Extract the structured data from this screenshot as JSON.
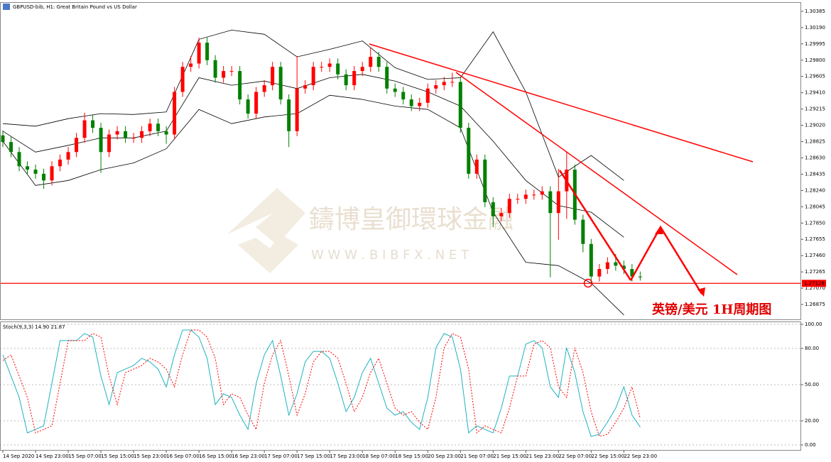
{
  "chart_data": [
    {
      "type": "candlestick",
      "title": "GBPUSD-bib, H1:  Great Britain Pound vs US Dollar",
      "annotations": [
        "英镑/美元 1H周期图"
      ],
      "watermark": [
        "鑄博皇御環球金融",
        "W W W . B I B F X . N E T"
      ],
      "up_color": "#ff0000",
      "down_color": "#008000",
      "price_line": 1.27128,
      "price_line_color": "#ff0000",
      "xlim": [
        -0.35,
        97.7
      ],
      "xticks": [
        {
          "value": 0,
          "label": "14 Sep 2020"
        },
        {
          "value": 4,
          "label": "14 Sep 23:00"
        },
        {
          "value": 8,
          "label": "15 Sep 07:00"
        },
        {
          "value": 12,
          "label": "15 Sep 15:00"
        },
        {
          "value": 16,
          "label": "15 Sep 23:00"
        },
        {
          "value": 20,
          "label": "16 Sep 07:00"
        },
        {
          "value": 24,
          "label": "16 Sep 15:00"
        },
        {
          "value": 28,
          "label": "16 Sep 23:00"
        },
        {
          "value": 32,
          "label": "17 Sep 07:00"
        },
        {
          "value": 36,
          "label": "17 Sep 15:00"
        },
        {
          "value": 40,
          "label": "17 Sep 23:00"
        },
        {
          "value": 44,
          "label": "18 Sep 07:00"
        },
        {
          "value": 48,
          "label": "18 Sep 15:00"
        },
        {
          "value": 52,
          "label": "20 Sep 23:00"
        },
        {
          "value": 56,
          "label": "21 Sep 07:00"
        },
        {
          "value": 60,
          "label": "21 Sep 15:00"
        },
        {
          "value": 64,
          "label": "21 Sep 23:00"
        },
        {
          "value": 68,
          "label": "22 Sep 07:00"
        },
        {
          "value": 72,
          "label": "22 Sep 15:00"
        },
        {
          "value": 76,
          "label": "22 Sep 23:00"
        }
      ],
      "ylim": [
        1.26697,
        1.30478
      ],
      "yticks": [
        1.30385,
        {
          "value": 1.3019,
          "label": "1.30190"
        },
        1.29995,
        {
          "value": 1.298,
          "label": "1.29800"
        },
        1.29605,
        {
          "value": 1.2941,
          "label": "1.29410"
        },
        1.29215,
        {
          "value": 1.2902,
          "label": "1.29020"
        },
        1.28825,
        {
          "value": 1.2863,
          "label": "1.28630"
        },
        1.28435,
        {
          "value": 1.2824,
          "label": "1.28240"
        },
        1.28045,
        {
          "value": 1.2785,
          "label": "1.27850"
        },
        1.27655,
        {
          "value": 1.2746,
          "label": "1.27460"
        },
        1.27265,
        {
          "value": 1.2707,
          "label": "1.27070"
        },
        1.26875
      ],
      "open": [
        1.289,
        1.2882,
        1.287,
        1.2853,
        1.2849,
        1.2844,
        1.2836,
        1.2853,
        1.2861,
        1.287,
        1.2887,
        1.2908,
        1.2899,
        1.287,
        1.2891,
        1.2895,
        1.2887,
        1.2887,
        1.2895,
        1.2904,
        1.2895,
        1.2891,
        1.2942,
        1.2972,
        1.2976,
        1.3001,
        1.298,
        1.2959,
        1.2967,
        1.2967,
        1.2933,
        1.2916,
        1.2942,
        1.295,
        1.2972,
        1.2933,
        1.2895,
        1.2946,
        1.295,
        1.2972,
        1.2972,
        1.2976,
        1.2963,
        1.295,
        1.2967,
        1.2972,
        1.2984,
        1.2972,
        1.2946,
        1.2942,
        1.2933,
        1.2925,
        1.2929,
        1.2946,
        1.295,
        1.2954,
        1.2954,
        1.2899,
        1.2844,
        1.2861,
        1.281,
        1.2793,
        1.2797,
        1.2814,
        1.2814,
        1.2819,
        1.2819,
        1.2823,
        1.2797,
        1.2823,
        1.2849,
        1.2789,
        1.276,
        1.2721,
        1.273,
        1.2738,
        1.2734,
        1.273,
        1.2721
      ],
      "high": [
        1.2896,
        1.2888,
        1.2876,
        1.2859,
        1.2855,
        1.285,
        1.2859,
        1.2867,
        1.2876,
        1.2893,
        1.2917,
        1.2914,
        1.2905,
        1.2897,
        1.2901,
        1.2901,
        1.2893,
        1.2901,
        1.291,
        1.291,
        1.2901,
        1.2948,
        1.2978,
        1.2985,
        1.3007,
        1.3007,
        1.2986,
        1.2973,
        1.2973,
        1.2973,
        1.2939,
        1.2948,
        1.2956,
        1.2978,
        1.2978,
        1.2939,
        1.2985,
        1.2956,
        1.2978,
        1.2978,
        1.2982,
        1.2982,
        1.2969,
        1.2973,
        1.2978,
        1.2995,
        1.299,
        1.2978,
        1.2952,
        1.2948,
        1.2939,
        1.2935,
        1.2952,
        1.2956,
        1.296,
        1.2965,
        1.296,
        1.2905,
        1.2867,
        1.2867,
        1.2816,
        1.2803,
        1.282,
        1.282,
        1.2825,
        1.2825,
        1.2829,
        1.2829,
        1.285,
        1.287,
        1.2855,
        1.2795,
        1.2766,
        1.2736,
        1.2744,
        1.2748,
        1.274,
        1.2736,
        1.2727
      ],
      "low": [
        1.2876,
        1.2864,
        1.2847,
        1.2843,
        1.2838,
        1.2826,
        1.283,
        1.2847,
        1.2855,
        1.2864,
        1.2881,
        1.2893,
        1.2845,
        1.2864,
        1.2885,
        1.2881,
        1.2881,
        1.2881,
        1.2889,
        1.2889,
        1.288,
        1.2885,
        1.2936,
        1.2966,
        1.297,
        1.2974,
        1.2953,
        1.2953,
        1.2961,
        1.2927,
        1.291,
        1.291,
        1.2936,
        1.2944,
        1.2927,
        1.2876,
        1.2889,
        1.294,
        1.2944,
        1.2966,
        1.2966,
        1.2957,
        1.2944,
        1.2944,
        1.2961,
        1.2966,
        1.2966,
        1.294,
        1.2936,
        1.2927,
        1.2919,
        1.2919,
        1.2923,
        1.294,
        1.2944,
        1.2948,
        1.2893,
        1.2838,
        1.2838,
        1.2804,
        1.278,
        1.2787,
        1.2791,
        1.2808,
        1.2808,
        1.2813,
        1.2813,
        1.272,
        1.2765,
        1.279,
        1.2783,
        1.275,
        1.2712,
        1.2715,
        1.2724,
        1.2728,
        1.2724,
        1.2715,
        1.2716
      ],
      "close": [
        1.2882,
        1.287,
        1.2853,
        1.2849,
        1.2844,
        1.2836,
        1.2853,
        1.2861,
        1.287,
        1.2887,
        1.2908,
        1.2899,
        1.287,
        1.2891,
        1.2895,
        1.2887,
        1.2887,
        1.2895,
        1.2904,
        1.2895,
        1.2891,
        1.2942,
        1.2972,
        1.2976,
        1.3001,
        1.298,
        1.2959,
        1.2967,
        1.2967,
        1.2933,
        1.2916,
        1.2942,
        1.295,
        1.2972,
        1.2933,
        1.2895,
        1.2946,
        1.295,
        1.2972,
        1.2972,
        1.2976,
        1.2963,
        1.295,
        1.2967,
        1.2972,
        1.2984,
        1.2972,
        1.2946,
        1.2942,
        1.2933,
        1.2925,
        1.2929,
        1.2946,
        1.295,
        1.2954,
        1.2954,
        1.2899,
        1.2844,
        1.2861,
        1.281,
        1.2793,
        1.2797,
        1.2814,
        1.2814,
        1.2819,
        1.2819,
        1.2823,
        1.2797,
        1.2823,
        1.2849,
        1.2789,
        1.276,
        1.2721,
        1.273,
        1.2738,
        1.2734,
        1.273,
        1.2721,
        1.272
      ],
      "bands": {
        "color": "#000000",
        "x": [
          0,
          4,
          8,
          12,
          16,
          20,
          24,
          28,
          32,
          36,
          40,
          44,
          48,
          52,
          56,
          60,
          64,
          68,
          72,
          76
        ],
        "upper": [
          1.2904,
          1.2901,
          1.291,
          1.2916,
          1.2915,
          1.2918,
          1.3005,
          1.3016,
          1.3011,
          1.2984,
          1.2993,
          1.3003,
          1.2971,
          1.2957,
          1.2959,
          1.3014,
          1.2942,
          1.284,
          1.2866,
          1.2836
        ],
        "middle": [
          1.2895,
          1.287,
          1.2878,
          1.2887,
          1.2887,
          1.2895,
          1.2959,
          1.295,
          1.2955,
          1.2946,
          1.2959,
          1.2963,
          1.2955,
          1.2942,
          1.2925,
          1.2883,
          1.2836,
          1.2806,
          1.2798,
          1.2768
        ],
        "lower": [
          1.2883,
          1.283,
          1.2836,
          1.2849,
          1.2857,
          1.2874,
          1.2921,
          1.2904,
          1.2912,
          1.2916,
          1.2938,
          1.2933,
          1.2925,
          1.2921,
          1.2899,
          1.2798,
          1.2738,
          1.2734,
          1.2713,
          1.2675
        ]
      }
    },
    {
      "type": "line",
      "title": "Stoch(9,3,3) 14.90 21.87",
      "ylim": [
        -4.7,
        102.35
      ],
      "yticks": [
        {
          "value": 100,
          "label": "100.00"
        },
        {
          "value": 80,
          "label": "80.00"
        },
        {
          "value": 50,
          "label": "50.00"
        },
        {
          "value": 20,
          "label": "20.00"
        },
        {
          "value": 0,
          "label": "0.00"
        }
      ],
      "grid": true,
      "series": [
        {
          "color": "#20b2c0",
          "dashed": false,
          "values": [
            74.7,
            57.1,
            39.4,
            10.0,
            12.9,
            15.9,
            51.2,
            86.5,
            86.5,
            86.5,
            92.4,
            89.4,
            57.1,
            33.5,
            60.0,
            62.9,
            65.9,
            71.8,
            68.8,
            62.9,
            48.2,
            74.7,
            95.3,
            95.3,
            89.4,
            71.8,
            33.5,
            42.4,
            39.4,
            24.7,
            12.9,
            51.2,
            74.7,
            86.5,
            57.1,
            24.7,
            42.4,
            68.8,
            77.6,
            77.6,
            71.8,
            51.2,
            27.6,
            39.4,
            60.0,
            71.8,
            51.2,
            30.6,
            24.7,
            27.6,
            18.8,
            12.9,
            39.4,
            80.6,
            92.4,
            89.4,
            62.9,
            10.0,
            15.9,
            12.9,
            10.0,
            30.6,
            57.1,
            57.1,
            83.5,
            86.5,
            80.6,
            48.2,
            39.4,
            80.6,
            60.0,
            27.6,
            7.1,
            8.8,
            18.8,
            30.6,
            48.2,
            24.7,
            14.9
          ]
        },
        {
          "color": "#ff0000",
          "dashed": true,
          "values": [
            70.0,
            74.7,
            57.1,
            39.4,
            10.0,
            12.9,
            15.9,
            51.2,
            86.5,
            86.5,
            86.5,
            92.4,
            89.4,
            57.1,
            33.5,
            60.0,
            62.9,
            65.9,
            71.8,
            68.8,
            62.9,
            48.2,
            74.7,
            95.3,
            95.3,
            89.4,
            71.8,
            33.5,
            42.4,
            39.4,
            24.7,
            12.9,
            51.2,
            74.7,
            86.5,
            57.1,
            24.7,
            42.4,
            68.8,
            77.6,
            77.6,
            71.8,
            51.2,
            27.6,
            39.4,
            60.0,
            71.8,
            51.2,
            30.6,
            24.7,
            27.6,
            18.8,
            12.9,
            39.4,
            80.6,
            92.4,
            89.4,
            62.9,
            10.0,
            15.9,
            12.9,
            10.0,
            30.6,
            57.1,
            57.1,
            83.5,
            86.5,
            80.6,
            48.2,
            39.4,
            80.6,
            60.0,
            27.6,
            7.1,
            8.8,
            18.8,
            30.6,
            48.2,
            21.9
          ]
        }
      ]
    }
  ]
}
